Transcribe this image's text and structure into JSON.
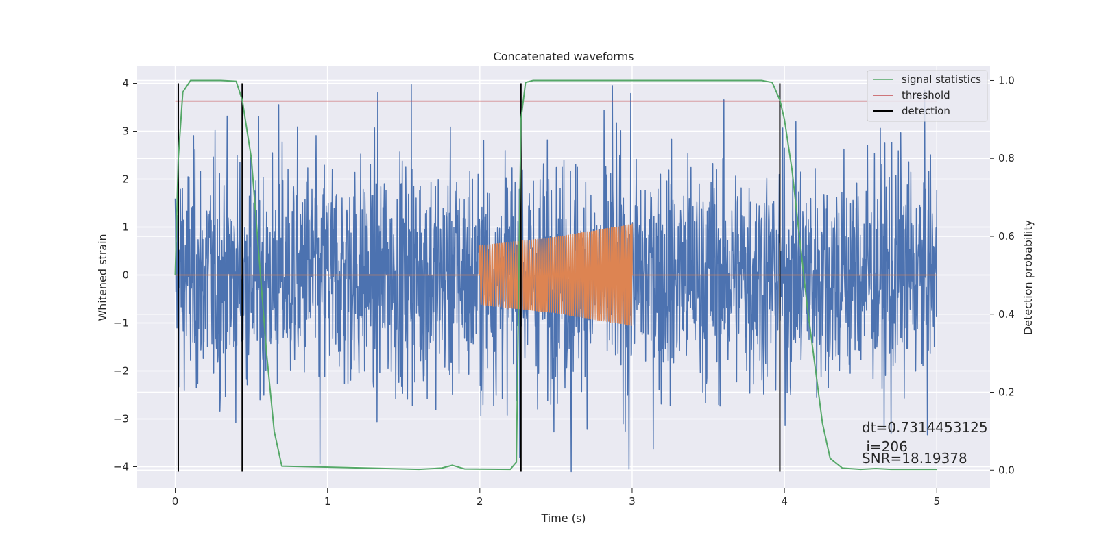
{
  "chart_data": {
    "type": "line",
    "title": "Concatenated waveforms",
    "xlabel": "Time (s)",
    "ylabel": "Whitened strain",
    "ylabel_right": "Detection probability",
    "xlim": [
      -0.25,
      5.35
    ],
    "ylim": [
      -4.45,
      4.35
    ],
    "ylim_right": [
      -0.047,
      1.036
    ],
    "x_ticks": [
      0,
      1,
      2,
      3,
      4,
      5
    ],
    "y_ticks": [
      -4,
      -3,
      -2,
      -1,
      0,
      1,
      2,
      3,
      4
    ],
    "y_ticks_right": [
      0.0,
      0.2,
      0.4,
      0.6,
      0.8,
      1.0
    ],
    "x_tick_labels": [
      "0",
      "1",
      "2",
      "3",
      "4",
      "5"
    ],
    "y_tick_labels": [
      "−4",
      "−3",
      "−2",
      "−1",
      "0",
      "1",
      "2",
      "3",
      "4"
    ],
    "y_tick_labels_right": [
      "0.0",
      "0.2",
      "0.4",
      "0.6",
      "0.8",
      "1.0"
    ],
    "grid": true,
    "legend_position": "top-right",
    "colors": {
      "noise": "#4c72b0",
      "injection": "#dd8452",
      "statistic": "#55a868",
      "threshold": "#c44e52",
      "detection": "#000000",
      "background": "#eaeaf2"
    },
    "series": [
      {
        "name": "",
        "axis": "left",
        "description": "whitened noise strain, 0 to 5 s",
        "x_range": [
          0,
          5
        ],
        "amplitude_typical": 1.2,
        "max": 3.97,
        "min": -4.1,
        "peaks": [
          [
            1.55,
            3.97
          ],
          [
            1.33,
            3.8
          ],
          [
            2.87,
            3.95
          ],
          [
            0.68,
            3.55
          ],
          [
            2.6,
            -4.1
          ],
          [
            2.98,
            -4.05
          ],
          [
            0.95,
            -3.93
          ],
          [
            0.44,
            -3.15
          ],
          [
            4.7,
            -3.3
          ]
        ]
      },
      {
        "name": "",
        "axis": "left",
        "description": "injected chirp waveform",
        "x": [
          2.0,
          2.5,
          3.0
        ],
        "amplitude": [
          0.62,
          0.8,
          1.07
        ]
      },
      {
        "name": "signal statistics",
        "axis": "right",
        "x": [
          0.0,
          0.02,
          0.05,
          0.1,
          0.3,
          0.4,
          0.44,
          0.5,
          0.55,
          0.6,
          0.65,
          0.7,
          1.6,
          1.75,
          1.82,
          1.9,
          2.2,
          2.24,
          2.27,
          2.3,
          2.35,
          2.5,
          3.85,
          3.92,
          3.97,
          4.0,
          4.05,
          4.15,
          4.25,
          4.3,
          4.38,
          4.5,
          4.6,
          4.7,
          5.0
        ],
        "values": [
          0.5,
          0.8,
          0.97,
          1.0,
          1.0,
          0.998,
          0.95,
          0.8,
          0.55,
          0.3,
          0.1,
          0.01,
          0.002,
          0.005,
          0.012,
          0.003,
          0.002,
          0.02,
          0.9,
          0.995,
          1.0,
          1.0,
          1.0,
          0.995,
          0.95,
          0.9,
          0.77,
          0.42,
          0.12,
          0.03,
          0.005,
          0.002,
          0.004,
          0.002,
          0.002
        ]
      },
      {
        "name": "threshold",
        "axis": "right",
        "x": [
          0,
          5
        ],
        "values": [
          0.947,
          0.947
        ]
      }
    ],
    "detections": {
      "name": "detection",
      "x": [
        0.02,
        0.44,
        2.27,
        3.97
      ],
      "y_range": [
        -4.1,
        4.0
      ]
    },
    "annotations": [
      "dt=0.7314453125",
      " i=206",
      "SNR=18.19378"
    ]
  }
}
